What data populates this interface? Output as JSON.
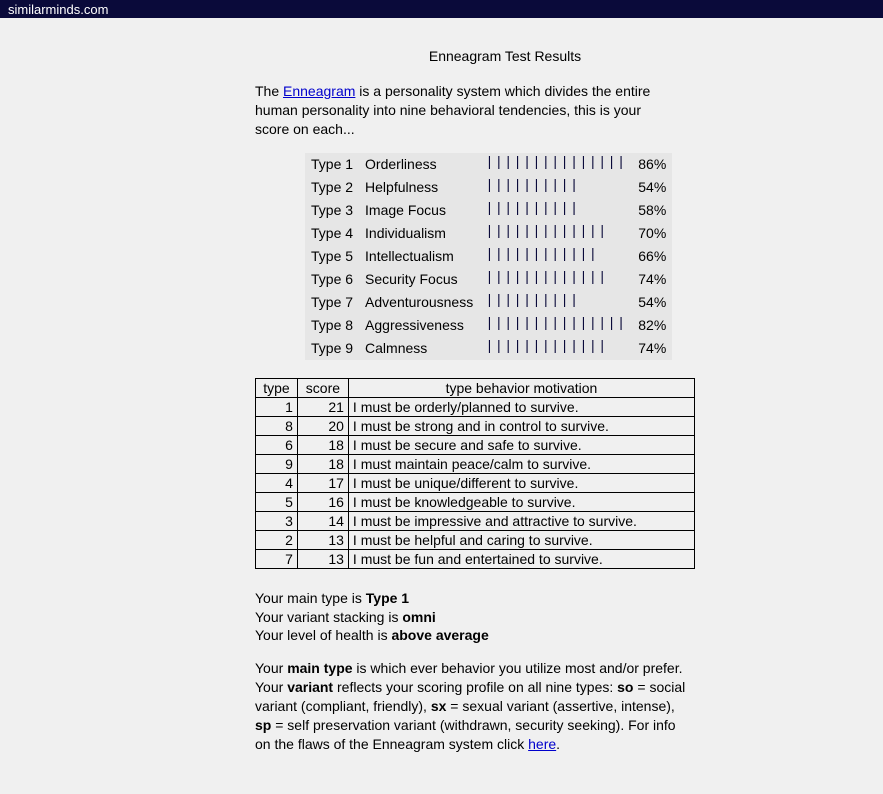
{
  "topbar": {
    "site": "similarminds.com"
  },
  "heading": "Enneagram Test Results",
  "intro": {
    "prefix": "The ",
    "link_text": "Enneagram",
    "suffix": " is a personality system which divides the entire human personality into nine behavioral tendencies, this is your score on each..."
  },
  "bar_chart": {
    "bar_color": "#0a0a3a",
    "background": "#e6e6e6",
    "max_bar_char_width": 18,
    "rows": [
      {
        "type": "Type 1",
        "label": "Orderliness",
        "pct": 86
      },
      {
        "type": "Type 2",
        "label": "Helpfulness",
        "pct": 54
      },
      {
        "type": "Type 3",
        "label": "Image Focus",
        "pct": 58
      },
      {
        "type": "Type 4",
        "label": "Individualism",
        "pct": 70
      },
      {
        "type": "Type 5",
        "label": "Intellectualism",
        "pct": 66
      },
      {
        "type": "Type 6",
        "label": "Security Focus",
        "pct": 74
      },
      {
        "type": "Type 7",
        "label": "Adventurousness",
        "pct": 54
      },
      {
        "type": "Type 8",
        "label": "Aggressiveness",
        "pct": 82
      },
      {
        "type": "Type 9",
        "label": "Calmness",
        "pct": 74
      }
    ]
  },
  "score_table": {
    "headers": [
      "type",
      "score",
      "type behavior motivation"
    ],
    "rows": [
      {
        "type": "1",
        "score": "21",
        "motivation": "I must be orderly/planned to survive."
      },
      {
        "type": "8",
        "score": "20",
        "motivation": "I must be strong and in control to survive."
      },
      {
        "type": "6",
        "score": "18",
        "motivation": "I must be secure and safe to survive."
      },
      {
        "type": "9",
        "score": "18",
        "motivation": "I must maintain peace/calm to survive."
      },
      {
        "type": "4",
        "score": "17",
        "motivation": "I must be unique/different to survive."
      },
      {
        "type": "5",
        "score": "16",
        "motivation": "I must be knowledgeable to survive."
      },
      {
        "type": "3",
        "score": "14",
        "motivation": "I must be impressive and attractive to survive."
      },
      {
        "type": "2",
        "score": "13",
        "motivation": "I must be helpful and caring to survive."
      },
      {
        "type": "7",
        "score": "13",
        "motivation": "I must be fun and entertained to survive."
      }
    ]
  },
  "summary": {
    "line1_prefix": "Your main type is ",
    "line1_bold": "Type 1",
    "line2_prefix": "Your variant stacking is ",
    "line2_bold": "omni",
    "line3_prefix": "Your level of health is ",
    "line3_bold": "above average"
  },
  "explain": {
    "t1": "Your ",
    "b1": "main type",
    "t2": " is which ever behavior you utilize most and/or prefer. Your ",
    "b2": "variant",
    "t3": " reflects your scoring profile on all nine types: ",
    "b3": "so",
    "t4": " = social variant (compliant, friendly), ",
    "b4": "sx",
    "t5": " = sexual variant (assertive, intense), ",
    "b5": "sp",
    "t6": " = self preservation variant (withdrawn, security seeking). For info on the flaws of the Enneagram system click ",
    "link": "here",
    "t7": "."
  }
}
